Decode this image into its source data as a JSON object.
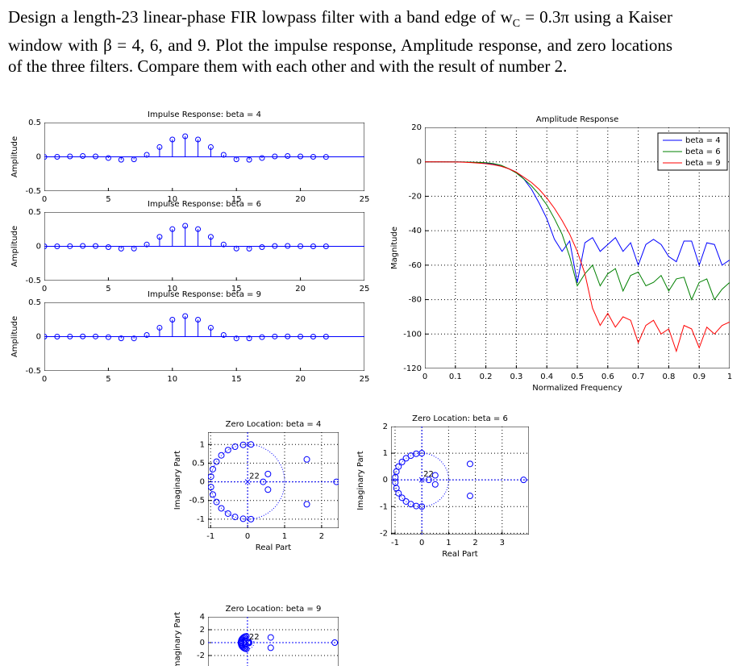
{
  "document": {
    "text": [
      "Design a length-23 linear-phase FIR lowpass filter with a band edge of w",
      "C",
      " = 0.3π using a Kaiser window with β = 4, 6, and 9. Plot the impulse response, Amplitude response, and zero locations of the three filters. Compare them with each other and with the result of number 2."
    ]
  },
  "chart_data": [
    {
      "type": "stem",
      "title": "Impulse Response: beta = 4",
      "ylabel": "Amplitude",
      "color": "#0000ff",
      "x": [
        0,
        1,
        2,
        3,
        4,
        5,
        6,
        7,
        8,
        9,
        10,
        11,
        12,
        13,
        14,
        15,
        16,
        17,
        18,
        19,
        20,
        21,
        22
      ],
      "values": [
        -0.002,
        0,
        0.006,
        0.012,
        0.006,
        -0.017,
        -0.043,
        -0.037,
        0.029,
        0.142,
        0.253,
        0.3,
        0.253,
        0.142,
        0.029,
        -0.037,
        -0.043,
        -0.017,
        0.006,
        0.012,
        0.006,
        0,
        -0.002
      ],
      "xlim": [
        0,
        25
      ],
      "xticks": [
        0,
        5,
        10,
        15,
        20,
        25
      ],
      "ylim": [
        -0.5,
        0.5
      ],
      "yticks": [
        -0.5,
        0,
        0.5
      ],
      "grid": false
    },
    {
      "type": "stem",
      "title": "Impulse Response: beta = 6",
      "ylabel": "Amplitude",
      "color": "#0000ff",
      "x": [
        0,
        1,
        2,
        3,
        4,
        5,
        6,
        7,
        8,
        9,
        10,
        11,
        12,
        13,
        14,
        15,
        16,
        17,
        18,
        19,
        20,
        21,
        22
      ],
      "values": [
        0,
        0,
        0.002,
        0.006,
        0.004,
        -0.012,
        -0.034,
        -0.032,
        0.027,
        0.138,
        0.251,
        0.3,
        0.251,
        0.138,
        0.027,
        -0.032,
        -0.034,
        -0.012,
        0.004,
        0.006,
        0.002,
        0,
        0
      ],
      "xlim": [
        0,
        25
      ],
      "xticks": [
        0,
        5,
        10,
        15,
        20,
        25
      ],
      "ylim": [
        -0.5,
        0.5
      ],
      "yticks": [
        -0.5,
        0,
        0.5
      ],
      "grid": false
    },
    {
      "type": "stem",
      "title": "Impulse Response: beta = 9",
      "ylabel": "Amplitude",
      "color": "#0000ff",
      "x": [
        0,
        1,
        2,
        3,
        4,
        5,
        6,
        7,
        8,
        9,
        10,
        11,
        12,
        13,
        14,
        15,
        16,
        17,
        18,
        19,
        20,
        21,
        22
      ],
      "values": [
        0,
        0,
        0.001,
        0.003,
        0.002,
        -0.008,
        -0.025,
        -0.026,
        0.024,
        0.13,
        0.247,
        0.3,
        0.247,
        0.13,
        0.024,
        -0.026,
        -0.025,
        -0.008,
        0.002,
        0.003,
        0.001,
        0,
        0
      ],
      "xlim": [
        0,
        25
      ],
      "xticks": [
        0,
        5,
        10,
        15,
        20,
        25
      ],
      "ylim": [
        -0.5,
        0.5
      ],
      "yticks": [
        -0.5,
        0,
        0.5
      ],
      "grid": false
    },
    {
      "type": "line",
      "title": "Amplitude Response",
      "xlabel": "Normalized Frequency",
      "ylabel": "Magnitude",
      "x": [
        0,
        0.025,
        0.05,
        0.075,
        0.1,
        0.125,
        0.15,
        0.175,
        0.2,
        0.225,
        0.25,
        0.275,
        0.3,
        0.325,
        0.35,
        0.375,
        0.4,
        0.425,
        0.45,
        0.475,
        0.5,
        0.525,
        0.55,
        0.575,
        0.6,
        0.625,
        0.65,
        0.675,
        0.7,
        0.725,
        0.75,
        0.775,
        0.8,
        0.825,
        0.85,
        0.875,
        0.9,
        0.925,
        0.95,
        0.975,
        1
      ],
      "series": [
        {
          "name": "beta = 4",
          "color": "#0000ff",
          "values": [
            0,
            0,
            0,
            0,
            0,
            -0.1,
            -0.2,
            -0.4,
            -0.8,
            -1.5,
            -2.5,
            -4,
            -6,
            -10,
            -16,
            -24,
            -33,
            -45,
            -52,
            -46,
            -70,
            -47,
            -44,
            -52,
            -48,
            -44,
            -52,
            -47,
            -60,
            -48,
            -45,
            -48,
            -55,
            -58,
            -46,
            -46,
            -60,
            -47,
            -48,
            -60,
            -57
          ]
        },
        {
          "name": "beta = 6",
          "color": "#008000",
          "values": [
            0,
            0,
            0,
            0,
            0,
            -0.1,
            -0.2,
            -0.3,
            -0.5,
            -1,
            -2,
            -4,
            -6.5,
            -10,
            -14,
            -19,
            -25,
            -33,
            -42,
            -55,
            -72,
            -65,
            -60,
            -72,
            -65,
            -62,
            -75,
            -66,
            -64,
            -72,
            -70,
            -66,
            -75,
            -68,
            -67,
            -80,
            -70,
            -68,
            -80,
            -74,
            -70
          ]
        },
        {
          "name": "beta = 9",
          "color": "#ff0000",
          "values": [
            0,
            0,
            0,
            -0.1,
            -0.1,
            -0.2,
            -0.4,
            -0.7,
            -1.1,
            -1.7,
            -2.6,
            -4,
            -6,
            -9,
            -12,
            -16,
            -21,
            -27,
            -34,
            -42,
            -52,
            -65,
            -85,
            -95,
            -88,
            -96,
            -90,
            -92,
            -105,
            -95,
            -92,
            -100,
            -97,
            -110,
            -95,
            -97,
            -108,
            -96,
            -100,
            -95,
            -93
          ]
        }
      ],
      "xlim": [
        0,
        1
      ],
      "xticks": [
        0,
        0.1,
        0.2,
        0.3,
        0.4,
        0.5,
        0.6,
        0.7,
        0.8,
        0.9,
        1
      ],
      "ylim": [
        -120,
        20
      ],
      "yticks": [
        -120,
        -100,
        -80,
        -60,
        -40,
        -20,
        0,
        20
      ],
      "grid": true,
      "legend": "upper right"
    },
    {
      "type": "scatter",
      "title": "Zero Location: beta = 4",
      "xlabel": "Real Part",
      "ylabel": "Imaginary Part",
      "color": "#0000ff",
      "zeros": {
        "x": [
          0.09,
          -0.12,
          -0.34,
          -0.53,
          -0.71,
          -0.84,
          -0.94,
          -0.99,
          0.09,
          -0.12,
          -0.34,
          -0.53,
          -0.71,
          -0.84,
          -0.94,
          -0.99,
          1.6,
          1.6,
          2.4,
          0.55,
          0.55,
          0.42
        ],
        "y": [
          1,
          0.99,
          0.94,
          0.85,
          0.71,
          0.54,
          0.34,
          0.14,
          -1,
          -0.99,
          -0.94,
          -0.85,
          -0.71,
          -0.54,
          -0.34,
          -0.14,
          0.6,
          -0.6,
          0,
          0.21,
          -0.21,
          0
        ]
      },
      "annotations": [
        {
          "text": "22",
          "x": 0,
          "y": 0
        }
      ],
      "xlim": [
        -1.07,
        2.46
      ],
      "xticks": [
        -1,
        0,
        1,
        2
      ],
      "ylim": [
        -1.24,
        1.33
      ],
      "yticks": [
        -1,
        -0.5,
        0,
        0.5,
        1
      ],
      "grid": true
    },
    {
      "type": "scatter",
      "title": "Zero Location: beta = 6",
      "xlabel": "Real Part",
      "ylabel": "Imaginary Part",
      "color": "#0000ff",
      "zeros": {
        "x": [
          0,
          -0.21,
          -0.41,
          -0.59,
          -0.74,
          -0.87,
          -0.95,
          -0.99,
          0,
          -0.21,
          -0.41,
          -0.59,
          -0.74,
          -0.87,
          -0.95,
          -0.99,
          1.8,
          1.8,
          3.8,
          0.5,
          0.5,
          0.26
        ],
        "y": [
          1,
          0.98,
          0.91,
          0.81,
          0.67,
          0.5,
          0.31,
          0.1,
          -1,
          -0.98,
          -0.91,
          -0.81,
          -0.67,
          -0.5,
          -0.31,
          -0.1,
          0.6,
          -0.6,
          0,
          0.17,
          -0.17,
          0
        ]
      },
      "annotations": [
        {
          "text": "22",
          "x": 0,
          "y": 0
        }
      ],
      "xlim": [
        -1.15,
        4
      ],
      "xticks": [
        -1,
        0,
        1,
        2,
        3
      ],
      "ylim": [
        -2.05,
        2
      ],
      "yticks": [
        -2,
        -1,
        0,
        1,
        2
      ],
      "grid": true
    },
    {
      "type": "scatter",
      "title": "Zero Location: beta = 9",
      "ylabel": "Imaginary Part",
      "color": "#0000ff",
      "zeros": {
        "x": [
          -0.17,
          -0.36,
          -0.53,
          -0.68,
          -0.81,
          -0.91,
          -0.97,
          -1,
          -0.17,
          -0.36,
          -0.53,
          -0.68,
          -0.81,
          -0.91,
          -0.97,
          -1,
          3.6,
          3.6,
          13.5,
          0.26,
          0.26,
          0.07
        ],
        "y": [
          0.98,
          0.93,
          0.85,
          0.73,
          0.59,
          0.42,
          0.24,
          0.05,
          -0.98,
          -0.93,
          -0.85,
          -0.73,
          -0.59,
          -0.42,
          -0.24,
          -0.05,
          0.8,
          -0.8,
          0,
          0.06,
          -0.06,
          0
        ]
      },
      "annotations": [
        {
          "text": "22",
          "x": 0,
          "y": 0
        }
      ],
      "xlim": [
        -6.1,
        14.1
      ],
      "ylim": [
        -4,
        4
      ],
      "yticks": [
        4,
        2,
        0,
        -2
      ],
      "grid": true
    }
  ]
}
